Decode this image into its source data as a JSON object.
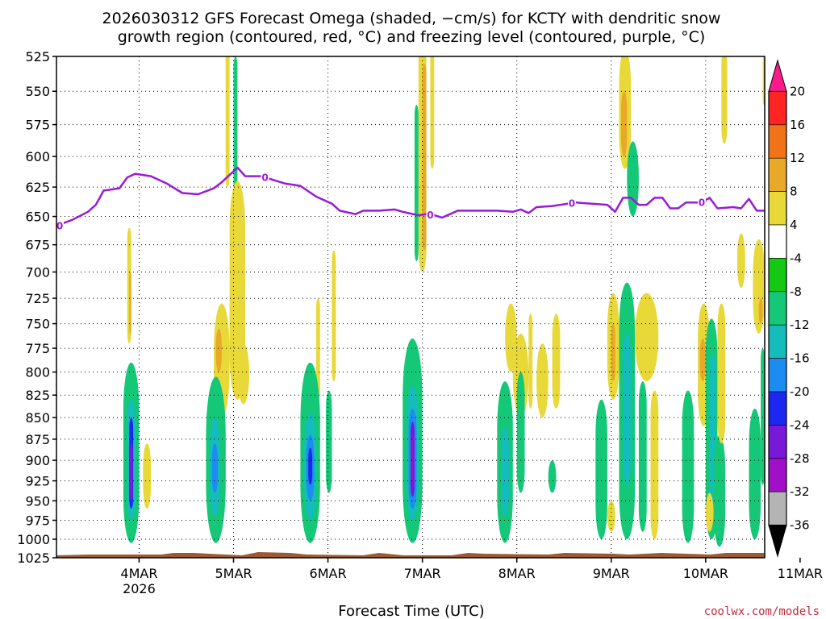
{
  "title": {
    "line1": "2026030312 GFS Forecast Omega (shaded, −cm/s) for KCTY with dendritic snow",
    "line2": "growth region (contoured, red, °C) and freezing level (contoured, purple, °C)"
  },
  "credit": "coolwx.com/models",
  "chart_data": {
    "type": "heatmap",
    "title": "2026030312 GFS Forecast Omega (shaded, −cm/s) for KCTY with dendritic snow growth region (contoured, red, °C) and freezing level (contoured, purple, °C)",
    "xlabel": "Forecast Time (UTC)",
    "ylabel": "",
    "x_range_hours": [
      -9,
      171
    ],
    "y_range_hpa": [
      525,
      1025
    ],
    "y_ticks": [
      525,
      550,
      575,
      600,
      625,
      650,
      675,
      700,
      725,
      750,
      775,
      800,
      825,
      850,
      875,
      900,
      925,
      950,
      975,
      1000,
      1025
    ],
    "x_ticks": [
      {
        "hour": 12,
        "label": "4MAR",
        "sublabel": "2026"
      },
      {
        "hour": 36,
        "label": "5MAR",
        "sublabel": ""
      },
      {
        "hour": 60,
        "label": "6MAR",
        "sublabel": ""
      },
      {
        "hour": 84,
        "label": "7MAR",
        "sublabel": ""
      },
      {
        "hour": 108,
        "label": "8MAR",
        "sublabel": ""
      },
      {
        "hour": 132,
        "label": "9MAR",
        "sublabel": ""
      },
      {
        "hour": 156,
        "label": "10MAR",
        "sublabel": ""
      },
      {
        "hour": 180,
        "label": "11MAR",
        "sublabel": ""
      }
    ],
    "colorbar": {
      "labels": [
        "20",
        "16",
        "12",
        "8",
        "4",
        "-4",
        "-8",
        "-12",
        "-16",
        "-20",
        "-24",
        "-28",
        "-32",
        "-36"
      ],
      "colors": [
        "#ff1a8c",
        "#ff2424",
        "#f07318",
        "#e8a828",
        "#e8d838",
        "#ffffff",
        "#14c814",
        "#14c878",
        "#14bcbc",
        "#1c8cf0",
        "#1c28f0",
        "#7818d8",
        "#a010c8",
        "#b4b4b4",
        "#000000"
      ]
    },
    "freezing_level": {
      "label": "0",
      "color": "#9a1ad6",
      "points": [
        [
          -9,
          658
        ],
        [
          -5,
          653
        ],
        [
          -1,
          646
        ],
        [
          1,
          640
        ],
        [
          3,
          628
        ],
        [
          7,
          626
        ],
        [
          9,
          617
        ],
        [
          11,
          614
        ],
        [
          15,
          616
        ],
        [
          19,
          622
        ],
        [
          23,
          630
        ],
        [
          27,
          631
        ],
        [
          31,
          626
        ],
        [
          33,
          621
        ],
        [
          35,
          615
        ],
        [
          37,
          609
        ],
        [
          39,
          616
        ],
        [
          43,
          616
        ],
        [
          45,
          618
        ],
        [
          49,
          622
        ],
        [
          53,
          624
        ],
        [
          57,
          633
        ],
        [
          61,
          639
        ],
        [
          63,
          645
        ],
        [
          67,
          648
        ],
        [
          69,
          645
        ],
        [
          73,
          645
        ],
        [
          77,
          644
        ],
        [
          79,
          646
        ],
        [
          83,
          649
        ],
        [
          85,
          648
        ],
        [
          87,
          649
        ],
        [
          89,
          651
        ],
        [
          91,
          648
        ],
        [
          93,
          645
        ],
        [
          95,
          645
        ],
        [
          99,
          645
        ],
        [
          103,
          645
        ],
        [
          107,
          646
        ],
        [
          109,
          644
        ],
        [
          111,
          647
        ],
        [
          113,
          642
        ],
        [
          117,
          641
        ],
        [
          121,
          639
        ],
        [
          123,
          638
        ],
        [
          127,
          639
        ],
        [
          131,
          640
        ],
        [
          133,
          646
        ],
        [
          135,
          634
        ],
        [
          137,
          634
        ],
        [
          139,
          640
        ],
        [
          141,
          640
        ],
        [
          143,
          634
        ],
        [
          145,
          634
        ],
        [
          147,
          643
        ],
        [
          149,
          643
        ],
        [
          151,
          638
        ],
        [
          155,
          638
        ],
        [
          157,
          634
        ],
        [
          159,
          643
        ],
        [
          163,
          642
        ],
        [
          165,
          643
        ],
        [
          167,
          635
        ],
        [
          169,
          645
        ],
        [
          171,
          645
        ]
      ],
      "label_hours": [
        -9,
        44,
        86,
        122,
        155
      ]
    },
    "omega_regions": [
      {
        "t_start": 9,
        "t_end": 10,
        "p_top": 660,
        "p_bottom": 770,
        "value": 6
      },
      {
        "t_start": 9.5,
        "t_end": 10,
        "p_top": 700,
        "p_bottom": 760,
        "value": 10
      },
      {
        "t_start": 8,
        "t_end": 12,
        "p_top": 790,
        "p_bottom": 1005,
        "value": -8
      },
      {
        "t_start": 8.5,
        "t_end": 11.5,
        "p_top": 800,
        "p_bottom": 990,
        "value": -10
      },
      {
        "t_start": 9,
        "t_end": 11,
        "p_top": 830,
        "p_bottom": 975,
        "value": -14
      },
      {
        "t_start": 9.5,
        "t_end": 10.5,
        "p_top": 850,
        "p_bottom": 960,
        "value": -22
      },
      {
        "t_start": 9.7,
        "t_end": 10.3,
        "p_top": 880,
        "p_bottom": 950,
        "value": -30
      },
      {
        "t_start": 13,
        "t_end": 15,
        "p_top": 880,
        "p_bottom": 960,
        "value": 6
      },
      {
        "t_start": 34,
        "t_end": 35,
        "p_top": 470,
        "p_bottom": 625,
        "value": 6
      },
      {
        "t_start": 36,
        "t_end": 37,
        "p_top": 525,
        "p_bottom": 630,
        "value": -10
      },
      {
        "t_start": 35,
        "t_end": 39,
        "p_top": 620,
        "p_bottom": 830,
        "value": 6
      },
      {
        "t_start": 31,
        "t_end": 35,
        "p_top": 730,
        "p_bottom": 850,
        "value": 6
      },
      {
        "t_start": 31.5,
        "t_end": 33,
        "p_top": 755,
        "p_bottom": 800,
        "value": 11
      },
      {
        "t_start": 37,
        "t_end": 40,
        "p_top": 770,
        "p_bottom": 835,
        "value": 6
      },
      {
        "t_start": 29,
        "t_end": 34,
        "p_top": 805,
        "p_bottom": 1005,
        "value": -8
      },
      {
        "t_start": 29.5,
        "t_end": 33.5,
        "p_top": 820,
        "p_bottom": 985,
        "value": -10
      },
      {
        "t_start": 30,
        "t_end": 32.5,
        "p_top": 850,
        "p_bottom": 970,
        "value": -14
      },
      {
        "t_start": 30.5,
        "t_end": 32,
        "p_top": 880,
        "p_bottom": 940,
        "value": -18
      },
      {
        "t_start": 57,
        "t_end": 58,
        "p_top": 725,
        "p_bottom": 830,
        "value": 6
      },
      {
        "t_start": 53,
        "t_end": 58,
        "p_top": 790,
        "p_bottom": 1005,
        "value": -8
      },
      {
        "t_start": 53.5,
        "t_end": 57.5,
        "p_top": 815,
        "p_bottom": 990,
        "value": -10
      },
      {
        "t_start": 54,
        "t_end": 57,
        "p_top": 845,
        "p_bottom": 975,
        "value": -14
      },
      {
        "t_start": 54.5,
        "t_end": 56.5,
        "p_top": 870,
        "p_bottom": 950,
        "value": -18
      },
      {
        "t_start": 55,
        "t_end": 56,
        "p_top": 885,
        "p_bottom": 930,
        "value": -22
      },
      {
        "t_start": 59.5,
        "t_end": 61,
        "p_top": 820,
        "p_bottom": 940,
        "value": -8
      },
      {
        "t_start": 61,
        "t_end": 62,
        "p_top": 680,
        "p_bottom": 810,
        "value": 6
      },
      {
        "t_start": 83,
        "t_end": 85,
        "p_top": 460,
        "p_bottom": 700,
        "value": 6
      },
      {
        "t_start": 84,
        "t_end": 85,
        "p_top": 530,
        "p_bottom": 680,
        "value": 10
      },
      {
        "t_start": 82,
        "t_end": 83,
        "p_top": 560,
        "p_bottom": 690,
        "value": -8
      },
      {
        "t_start": 86,
        "t_end": 87,
        "p_top": 520,
        "p_bottom": 610,
        "value": 6
      },
      {
        "t_start": 79,
        "t_end": 84,
        "p_top": 765,
        "p_bottom": 1005,
        "value": -8
      },
      {
        "t_start": 79.5,
        "t_end": 83.5,
        "p_top": 790,
        "p_bottom": 990,
        "value": -10
      },
      {
        "t_start": 80,
        "t_end": 83,
        "p_top": 815,
        "p_bottom": 975,
        "value": -14
      },
      {
        "t_start": 80.5,
        "t_end": 82.5,
        "p_top": 840,
        "p_bottom": 960,
        "value": -18
      },
      {
        "t_start": 81,
        "t_end": 82,
        "p_top": 855,
        "p_bottom": 945,
        "value": -24
      },
      {
        "t_start": 81.2,
        "t_end": 81.8,
        "p_top": 870,
        "p_bottom": 930,
        "value": -30
      },
      {
        "t_start": 105,
        "t_end": 108,
        "p_top": 730,
        "p_bottom": 800,
        "value": 6
      },
      {
        "t_start": 107,
        "t_end": 111,
        "p_top": 760,
        "p_bottom": 850,
        "value": 6
      },
      {
        "t_start": 103,
        "t_end": 107,
        "p_top": 810,
        "p_bottom": 1005,
        "value": -8
      },
      {
        "t_start": 103.5,
        "t_end": 106.5,
        "p_top": 830,
        "p_bottom": 990,
        "value": -10
      },
      {
        "t_start": 104,
        "t_end": 106,
        "p_top": 860,
        "p_bottom": 970,
        "value": -14
      },
      {
        "t_start": 108,
        "t_end": 110,
        "p_top": 800,
        "p_bottom": 940,
        "value": -8
      },
      {
        "t_start": 111,
        "t_end": 112,
        "p_top": 740,
        "p_bottom": 840,
        "value": 6
      },
      {
        "t_start": 113,
        "t_end": 116,
        "p_top": 770,
        "p_bottom": 850,
        "value": 6
      },
      {
        "t_start": 117,
        "t_end": 119,
        "p_top": 740,
        "p_bottom": 840,
        "value": 6
      },
      {
        "t_start": 116,
        "t_end": 118,
        "p_top": 900,
        "p_bottom": 940,
        "value": -8
      },
      {
        "t_start": 128,
        "t_end": 131,
        "p_top": 830,
        "p_bottom": 1000,
        "value": -8
      },
      {
        "t_start": 128.5,
        "t_end": 130.5,
        "p_top": 860,
        "p_bottom": 980,
        "value": -10
      },
      {
        "t_start": 131,
        "t_end": 134,
        "p_top": 720,
        "p_bottom": 830,
        "value": 6
      },
      {
        "t_start": 132,
        "t_end": 133,
        "p_top": 750,
        "p_bottom": 810,
        "value": 10
      },
      {
        "t_start": 134,
        "t_end": 137,
        "p_top": 520,
        "p_bottom": 610,
        "value": 6
      },
      {
        "t_start": 134.5,
        "t_end": 136,
        "p_top": 550,
        "p_bottom": 600,
        "value": 10
      },
      {
        "t_start": 136,
        "t_end": 139,
        "p_top": 588,
        "p_bottom": 650,
        "value": -8
      },
      {
        "t_start": 134,
        "t_end": 138,
        "p_top": 710,
        "p_bottom": 1000,
        "value": -8
      },
      {
        "t_start": 134.5,
        "t_end": 137.5,
        "p_top": 730,
        "p_bottom": 985,
        "value": -10
      },
      {
        "t_start": 135,
        "t_end": 137,
        "p_top": 760,
        "p_bottom": 930,
        "value": -14
      },
      {
        "t_start": 138,
        "t_end": 144,
        "p_top": 720,
        "p_bottom": 810,
        "value": 6
      },
      {
        "t_start": 139,
        "t_end": 141,
        "p_top": 810,
        "p_bottom": 990,
        "value": -8
      },
      {
        "t_start": 142,
        "t_end": 144,
        "p_top": 820,
        "p_bottom": 1000,
        "value": 6
      },
      {
        "t_start": 131,
        "t_end": 133,
        "p_top": 950,
        "p_bottom": 990,
        "value": 6
      },
      {
        "t_start": 150,
        "t_end": 153,
        "p_top": 820,
        "p_bottom": 1005,
        "value": -8
      },
      {
        "t_start": 150.5,
        "t_end": 152.5,
        "p_top": 840,
        "p_bottom": 990,
        "value": -10
      },
      {
        "t_start": 154,
        "t_end": 157,
        "p_top": 730,
        "p_bottom": 860,
        "value": 6
      },
      {
        "t_start": 154.5,
        "t_end": 156,
        "p_top": 765,
        "p_bottom": 810,
        "value": 10
      },
      {
        "t_start": 156,
        "t_end": 159,
        "p_top": 745,
        "p_bottom": 1000,
        "value": -8
      },
      {
        "t_start": 157,
        "t_end": 158.5,
        "p_top": 780,
        "p_bottom": 960,
        "value": -12
      },
      {
        "t_start": 158,
        "t_end": 161,
        "p_top": 870,
        "p_bottom": 1010,
        "value": -8
      },
      {
        "t_start": 159,
        "t_end": 161,
        "p_top": 730,
        "p_bottom": 880,
        "value": 6
      },
      {
        "t_start": 156,
        "t_end": 158,
        "p_top": 940,
        "p_bottom": 990,
        "value": 6
      },
      {
        "t_start": 160,
        "t_end": 161.5,
        "p_top": 520,
        "p_bottom": 590,
        "value": 6
      },
      {
        "t_start": 164,
        "t_end": 166,
        "p_top": 665,
        "p_bottom": 715,
        "value": 6
      },
      {
        "t_start": 168,
        "t_end": 171,
        "p_top": 670,
        "p_bottom": 760,
        "value": 6
      },
      {
        "t_start": 169.5,
        "t_end": 170.5,
        "p_top": 725,
        "p_bottom": 750,
        "value": 11
      },
      {
        "t_start": 167,
        "t_end": 170,
        "p_top": 840,
        "p_bottom": 1000,
        "value": -8
      },
      {
        "t_start": 167.5,
        "t_end": 169.5,
        "p_top": 860,
        "p_bottom": 985,
        "value": -10
      },
      {
        "t_start": 170.5,
        "t_end": 171,
        "p_top": 525,
        "p_bottom": 560,
        "value": 6
      },
      {
        "t_start": 170,
        "t_end": 171,
        "p_top": 775,
        "p_bottom": 930,
        "value": -8
      }
    ]
  }
}
